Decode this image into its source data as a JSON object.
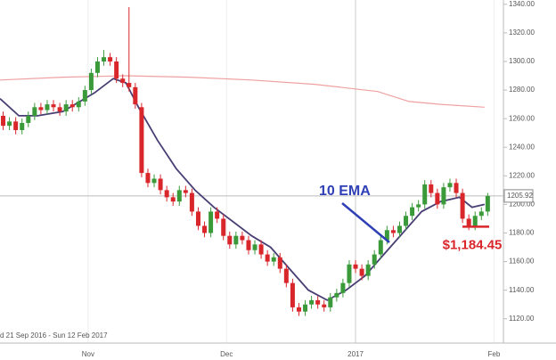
{
  "chart_data": {
    "type": "candlestick",
    "date_range": "d 21 Sep 2016 - Sun 12 Feb 2017",
    "xlim": [
      0,
      80
    ],
    "xticks": [
      {
        "value": 14,
        "label": "Nov"
      },
      {
        "value": 36,
        "label": "Dec"
      },
      {
        "value": 56.5,
        "label": "2017"
      },
      {
        "value": 78.5,
        "label": "Feb"
      }
    ],
    "ylim": [
      1103,
      1343
    ],
    "yticks": [
      {
        "value": 1120,
        "label": "1120.00"
      },
      {
        "value": 1140,
        "label": "1140.00"
      },
      {
        "value": 1160,
        "label": "1160.00"
      },
      {
        "value": 1180,
        "label": "1180.00"
      },
      {
        "value": 1200,
        "label": "1200.00"
      },
      {
        "value": 1220,
        "label": "1220.00"
      },
      {
        "value": 1240,
        "label": "1240.00"
      },
      {
        "value": 1260,
        "label": "1260.00"
      },
      {
        "value": 1280,
        "label": "1280.00"
      },
      {
        "value": 1300,
        "label": "1300.00"
      },
      {
        "value": 1320,
        "label": "1320.00"
      },
      {
        "value": 1340,
        "label": "1340.00"
      }
    ],
    "up_color": "#3a9a3a",
    "down_color": "#d9262b",
    "open": [
      1262,
      1255,
      1258,
      1252,
      1257,
      1262,
      1268,
      1266,
      1270,
      1268,
      1265,
      1270,
      1268,
      1272,
      1280,
      1292,
      1300,
      1303,
      1300,
      1288,
      1285,
      1282,
      1268,
      1222,
      1215,
      1218,
      1210,
      1205,
      1202,
      1210,
      1208,
      1195,
      1185,
      1180,
      1195,
      1190,
      1178,
      1172,
      1178,
      1175,
      1168,
      1172,
      1165,
      1160,
      1163,
      1155,
      1145,
      1128,
      1125,
      1130,
      1133,
      1130,
      1128,
      1135,
      1138,
      1145,
      1158,
      1155,
      1150,
      1158,
      1165,
      1175,
      1182,
      1180,
      1185,
      1192,
      1198,
      1200,
      1214,
      1208,
      1200,
      1212,
      1215,
      1208,
      1190,
      1185,
      1192,
      1195
    ],
    "high": [
      1265,
      1261,
      1261,
      1260,
      1265,
      1271,
      1271,
      1273,
      1273,
      1271,
      1273,
      1273,
      1275,
      1283,
      1295,
      1303,
      1308,
      1306,
      1303,
      1291,
      1338,
      1285,
      1271,
      1225,
      1221,
      1221,
      1213,
      1208,
      1213,
      1213,
      1211,
      1198,
      1188,
      1198,
      1198,
      1193,
      1181,
      1181,
      1181,
      1178,
      1175,
      1175,
      1168,
      1166,
      1166,
      1158,
      1148,
      1131,
      1133,
      1136,
      1136,
      1133,
      1138,
      1141,
      1148,
      1161,
      1161,
      1158,
      1161,
      1168,
      1178,
      1185,
      1185,
      1188,
      1195,
      1201,
      1203,
      1217,
      1217,
      1211,
      1215,
      1218,
      1218,
      1211,
      1193,
      1195,
      1198,
      1208
    ],
    "low": [
      1252,
      1252,
      1249,
      1249,
      1254,
      1259,
      1263,
      1263,
      1265,
      1262,
      1262,
      1265,
      1265,
      1269,
      1277,
      1289,
      1297,
      1297,
      1285,
      1282,
      1279,
      1267,
      1219,
      1212,
      1212,
      1207,
      1202,
      1199,
      1199,
      1205,
      1192,
      1182,
      1177,
      1177,
      1187,
      1175,
      1169,
      1169,
      1172,
      1165,
      1165,
      1162,
      1157,
      1157,
      1152,
      1142,
      1125,
      1122,
      1122,
      1127,
      1127,
      1125,
      1125,
      1132,
      1135,
      1142,
      1152,
      1147,
      1147,
      1155,
      1162,
      1172,
      1177,
      1177,
      1182,
      1189,
      1195,
      1197,
      1205,
      1197,
      1197,
      1209,
      1205,
      1187,
      1182,
      1182,
      1189,
      1192
    ],
    "close": [
      1255,
      1258,
      1252,
      1257,
      1262,
      1268,
      1266,
      1270,
      1268,
      1265,
      1270,
      1268,
      1272,
      1280,
      1292,
      1300,
      1303,
      1300,
      1288,
      1285,
      1282,
      1270,
      1222,
      1215,
      1218,
      1210,
      1205,
      1202,
      1210,
      1208,
      1195,
      1185,
      1180,
      1195,
      1190,
      1178,
      1172,
      1178,
      1175,
      1168,
      1172,
      1165,
      1160,
      1163,
      1155,
      1145,
      1128,
      1125,
      1130,
      1133,
      1130,
      1128,
      1135,
      1138,
      1145,
      1158,
      1155,
      1150,
      1158,
      1165,
      1175,
      1182,
      1180,
      1185,
      1192,
      1198,
      1200,
      1214,
      1208,
      1200,
      1212,
      1215,
      1208,
      1190,
      1185,
      1192,
      1195,
      1205.92
    ],
    "lines": [
      {
        "color": "#4a3f75",
        "x": [
          0,
          3,
          6,
          10,
          15,
          18,
          20,
          22,
          25,
          28,
          31,
          34,
          37,
          40,
          43,
          46,
          49,
          52,
          55,
          58,
          61,
          64,
          67,
          70,
          73,
          75,
          77
        ],
        "values": [
          1274,
          1262,
          1262,
          1265,
          1278,
          1288,
          1285,
          1268,
          1245,
          1225,
          1210,
          1198,
          1188,
          1178,
          1170,
          1155,
          1140,
          1133,
          1140,
          1150,
          1165,
          1180,
          1195,
          1202,
          1205,
          1198,
          1200
        ]
      },
      {
        "color": "#f0a0a0",
        "x": [
          0,
          10,
          20,
          30,
          40,
          50,
          60,
          65,
          70,
          77
        ],
        "values": [
          1287,
          1289,
          1290,
          1289,
          1287,
          1284,
          1279,
          1272,
          1270,
          1268
        ]
      }
    ],
    "last_price": 1205.92,
    "annotation": "10 EMA",
    "support": {
      "label": "$1,184.45",
      "value": 1184.45
    }
  }
}
